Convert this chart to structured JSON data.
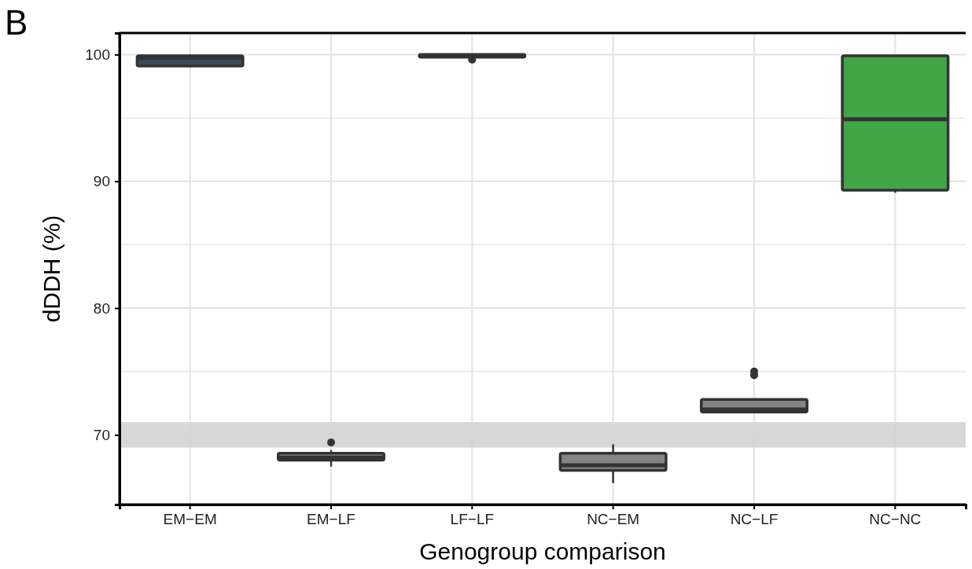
{
  "chart_data": {
    "type": "box",
    "title": "B",
    "xlabel": "Genogroup comparison",
    "ylabel": "dDDH (%)",
    "categories": [
      "EM−EM",
      "EM−LF",
      "LF−LF",
      "NC−EM",
      "NC−LF",
      "NC−NC"
    ],
    "colors": [
      "#3b4a5c",
      "#858585",
      "#858585",
      "#858585",
      "#858585",
      "#41a646"
    ],
    "boxes": [
      {
        "low": 99.0,
        "q1": 99.1,
        "median": 99.75,
        "q3": 99.9,
        "high": 100.0
      },
      {
        "low": 67.5,
        "q1": 68.0,
        "median": 68.2,
        "q3": 68.55,
        "high": 68.8,
        "outliers": [
          69.4
        ]
      },
      {
        "low": 99.8,
        "q1": 99.8,
        "median": 99.95,
        "q3": 100.0,
        "high": 100.0,
        "outliers": [
          99.6
        ]
      },
      {
        "low": 66.2,
        "q1": 67.2,
        "median": 67.6,
        "q3": 68.55,
        "high": 69.25
      },
      {
        "low": 71.7,
        "q1": 71.8,
        "median": 72.0,
        "q3": 72.8,
        "high": 72.8,
        "outliers": [
          74.7,
          75.0
        ]
      },
      {
        "low": 89.1,
        "q1": 89.3,
        "median": 94.9,
        "q3": 99.9,
        "high": 99.9
      }
    ],
    "ylim": [
      64.5,
      101.7
    ],
    "yticks": [
      70,
      {
        "value": 75,
        "label": null
      },
      80,
      {
        "value": 85,
        "label": null
      },
      90,
      {
        "value": 95,
        "label": null
      },
      100
    ],
    "grid": true,
    "bands": [
      {
        "axis": "y",
        "from": 69,
        "to": 71,
        "color": "#d3d3d3"
      }
    ]
  }
}
